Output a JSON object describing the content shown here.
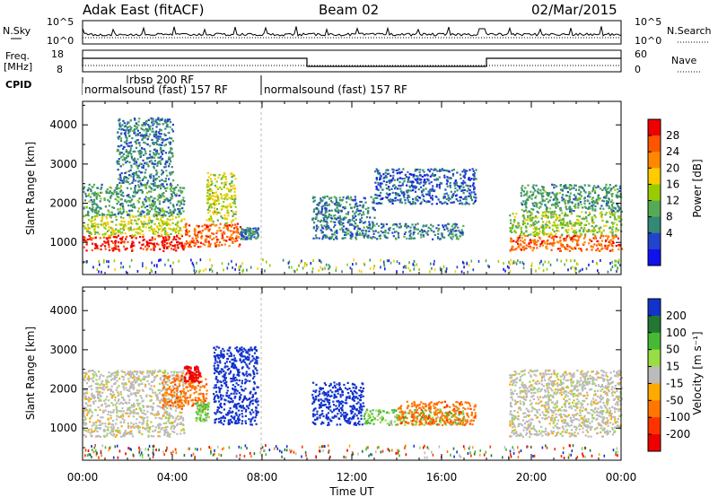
{
  "header": {
    "station": "Adak East (fitACF)",
    "beam": "Beam 02",
    "date": "02/Mar/2015"
  },
  "summary_panels": {
    "nsky_label": "N.Sky",
    "nsky_ticks": [
      "10^5",
      "10^0"
    ],
    "nsearch_label": "N.Search",
    "nsearch_ticks": [
      "10^5",
      "10^0"
    ],
    "freq_label_1": "Freq.",
    "freq_label_2": "[MHz]",
    "freq_ticks": [
      "18",
      "8"
    ],
    "nave_label": "Nave",
    "nave_ticks": [
      "60",
      "0"
    ],
    "cpid_label": "CPID",
    "cpid_segments": [
      {
        "label": "normalsound (fast) 157 RF",
        "start_h": 0
      },
      {
        "label": "rbsp 200 RF",
        "start_h": 2.1
      },
      {
        "label": "normalsound (fast) 157 RF",
        "start_h": 8
      }
    ]
  },
  "x_axis": {
    "label": "Time UT",
    "ticks": [
      "00:00",
      "04:00",
      "08:00",
      "12:00",
      "16:00",
      "20:00",
      "00:00"
    ]
  },
  "colorbars": {
    "power": {
      "label": "Power [dB]",
      "ticks": [
        "28",
        "24",
        "20",
        "16",
        "12",
        "8",
        "4"
      ],
      "colors_top_to_bottom": [
        "#ee0000",
        "#ff5500",
        "#ff8800",
        "#ffcc00",
        "#99cc00",
        "#55aa55",
        "#338877",
        "#2244cc",
        "#1111ee"
      ]
    },
    "velocity": {
      "label": "Velocity [m s⁻¹]",
      "ticks": [
        "200",
        "100",
        "50",
        "15",
        "-15",
        "-50",
        "-100",
        "-200"
      ],
      "colors_top_to_bottom": [
        "#1133cc",
        "#227733",
        "#44bb33",
        "#99dd44",
        "#bbbbbb",
        "#ffaa00",
        "#ff7700",
        "#ff3300",
        "#ee0000"
      ]
    }
  },
  "chart_data": [
    {
      "type": "heatmap",
      "title": "Power",
      "xlabel": "Time UT",
      "ylabel": "Slant Range [km]",
      "xlim_hours": [
        0,
        24
      ],
      "ylim_km": [
        180,
        4600
      ],
      "yticks": [
        1000,
        2000,
        3000,
        4000
      ],
      "colorbar": "Power [dB]",
      "clim_db": [
        0,
        30
      ],
      "echo_regions": [
        {
          "t_start": 0.0,
          "t_end": 4.5,
          "r_low": 800,
          "r_high": 1200,
          "db": 28
        },
        {
          "t_start": 0.0,
          "t_end": 4.5,
          "r_low": 1200,
          "r_high": 1700,
          "db": 16
        },
        {
          "t_start": 0.0,
          "t_end": 4.5,
          "r_low": 1700,
          "r_high": 2500,
          "db": 10
        },
        {
          "t_start": 1.5,
          "t_end": 4.0,
          "r_low": 2500,
          "r_high": 4200,
          "db": 8
        },
        {
          "t_start": 4.5,
          "t_end": 7.0,
          "r_low": 900,
          "r_high": 1500,
          "db": 24
        },
        {
          "t_start": 5.5,
          "t_end": 6.8,
          "r_low": 1500,
          "r_high": 2800,
          "db": 16
        },
        {
          "t_start": 7.0,
          "t_end": 7.8,
          "r_low": 1100,
          "r_high": 1400,
          "db": 8
        },
        {
          "t_start": 10.2,
          "t_end": 17.0,
          "r_low": 1100,
          "r_high": 1500,
          "db": 8
        },
        {
          "t_start": 10.2,
          "t_end": 13.0,
          "r_low": 1500,
          "r_high": 2200,
          "db": 8
        },
        {
          "t_start": 13.0,
          "t_end": 17.5,
          "r_low": 2000,
          "r_high": 2900,
          "db": 6
        },
        {
          "t_start": 19.0,
          "t_end": 24.0,
          "r_low": 800,
          "r_high": 1200,
          "db": 24
        },
        {
          "t_start": 19.0,
          "t_end": 24.0,
          "r_low": 1200,
          "r_high": 1800,
          "db": 14
        },
        {
          "t_start": 19.5,
          "t_end": 24.0,
          "r_low": 1800,
          "r_high": 2500,
          "db": 10
        }
      ]
    },
    {
      "type": "heatmap",
      "title": "Velocity",
      "xlabel": "Time UT",
      "ylabel": "Slant Range [km]",
      "xlim_hours": [
        0,
        24
      ],
      "ylim_km": [
        180,
        4600
      ],
      "yticks": [
        1000,
        2000,
        3000,
        4000
      ],
      "colorbar": "Velocity [m s⁻¹]",
      "clim_ms": [
        -250,
        250
      ],
      "echo_regions": [
        {
          "t_start": 0.0,
          "t_end": 4.5,
          "r_low": 800,
          "r_high": 2500,
          "vel": 0
        },
        {
          "t_start": 3.5,
          "t_end": 5.5,
          "r_low": 1500,
          "r_high": 2400,
          "vel": -60
        },
        {
          "t_start": 4.5,
          "t_end": 5.2,
          "r_low": 2200,
          "r_high": 2600,
          "vel": -200
        },
        {
          "t_start": 5.0,
          "t_end": 5.6,
          "r_low": 1200,
          "r_high": 1700,
          "vel": 30
        },
        {
          "t_start": 5.8,
          "t_end": 7.8,
          "r_low": 1100,
          "r_high": 3100,
          "vel": 220
        },
        {
          "t_start": 10.2,
          "t_end": 12.5,
          "r_low": 1100,
          "r_high": 2200,
          "vel": 220
        },
        {
          "t_start": 12.5,
          "t_end": 17.0,
          "r_low": 1100,
          "r_high": 1500,
          "vel": 30
        },
        {
          "t_start": 14.0,
          "t_end": 17.5,
          "r_low": 1100,
          "r_high": 1700,
          "vel": -60
        },
        {
          "t_start": 19.0,
          "t_end": 24.0,
          "r_low": 800,
          "r_high": 2500,
          "vel": 0
        }
      ]
    }
  ]
}
